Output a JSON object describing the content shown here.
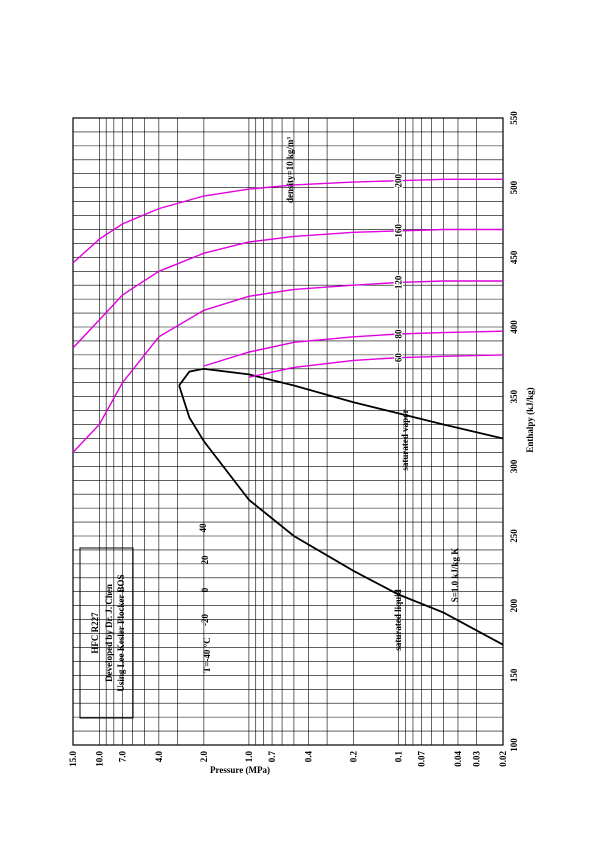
{
  "chart_data": {
    "type": "line",
    "title": "HFC   R227",
    "annotations": [
      "Developed by Dr. J. Chen",
      "Using Lee Kesler Plocker BOS",
      "saturated vapor",
      "saturated liquid",
      "T=-40 °C",
      "-20",
      "0",
      "20",
      "40",
      "S=1.0 kJ/kg K",
      "density=10 kg/m³"
    ],
    "x_label": "Enthalpy (kJ/kg)",
    "y_label": "Pressure (MPa)",
    "xlim": [
      100,
      550
    ],
    "xticks": [
      100,
      150,
      200,
      250,
      300,
      350,
      400,
      450,
      500,
      550
    ],
    "x_minor_ticks": [
      110,
      120,
      130,
      140,
      160,
      170,
      180,
      190,
      210,
      220,
      230,
      240,
      260,
      270,
      280,
      290,
      310,
      320,
      330,
      340,
      360,
      370,
      380,
      390,
      410,
      420,
      430,
      440,
      460,
      470,
      480,
      490,
      510,
      520,
      530,
      540
    ],
    "yscale": "log",
    "ylim": [
      0.02,
      15
    ],
    "yticks": [
      {
        "value": 15,
        "label": "15.0"
      },
      {
        "value": 10,
        "label": "10.0"
      },
      {
        "value": 7,
        "label": "7.0"
      },
      {
        "value": 4,
        "label": "4.0"
      },
      {
        "value": 2,
        "label": "2.0"
      },
      {
        "value": 1,
        "label": "1.0"
      },
      0.7,
      0.4,
      0.2,
      0.1,
      0.07,
      0.04,
      0.03,
      0.02
    ],
    "y_minor_ticks": [
      0.05,
      0.06,
      0.08,
      0.09,
      0.3,
      0.5,
      0.6,
      0.8,
      0.9,
      3,
      5,
      6,
      8,
      9
    ],
    "grid": true,
    "series": [
      {
        "name": "saturated liquid line",
        "color": "#000000",
        "x": [
          172,
          195,
          208,
          225,
          250,
          276,
          318,
          335,
          358
        ],
        "values": [
          0.02,
          0.05,
          0.1,
          0.2,
          0.5,
          1,
          2,
          2.5,
          2.93
        ]
      },
      {
        "name": "saturated vapor line",
        "color": "#000000",
        "x": [
          320,
          330,
          338,
          346,
          358,
          366,
          370,
          368,
          358
        ],
        "values": [
          0.02,
          0.05,
          0.1,
          0.2,
          0.5,
          1,
          2,
          2.5,
          2.93
        ]
      },
      {
        "name": "200",
        "color": "#e000e0",
        "x": [
          506,
          506,
          505,
          504,
          502,
          499,
          494,
          485,
          474,
          463,
          446
        ],
        "values": [
          0.02,
          0.05,
          0.1,
          0.2,
          0.5,
          1,
          2,
          4,
          7,
          10,
          15
        ]
      },
      {
        "name": "160",
        "color": "#e000e0",
        "x": [
          470,
          470,
          469,
          468,
          465,
          461,
          453,
          440,
          423,
          405,
          385
        ],
        "values": [
          0.02,
          0.05,
          0.1,
          0.2,
          0.5,
          1,
          2,
          4,
          7,
          10,
          15
        ]
      },
      {
        "name": "120",
        "color": "#e000e0",
        "x": [
          433,
          433,
          432,
          430,
          427,
          422,
          412,
          393,
          360,
          330,
          310
        ],
        "values": [
          0.02,
          0.05,
          0.1,
          0.2,
          0.5,
          1,
          2,
          4,
          7,
          10,
          15
        ]
      },
      {
        "name": "80",
        "color": "#e000e0",
        "x": [
          397,
          396,
          395,
          393,
          389,
          382,
          372
        ],
        "values": [
          0.02,
          0.05,
          0.1,
          0.2,
          0.5,
          1,
          2
        ]
      },
      {
        "name": "60",
        "color": "#e000e0",
        "x": [
          380,
          379,
          378,
          376,
          371,
          364
        ],
        "values": [
          0.02,
          0.05,
          0.1,
          0.2,
          0.5,
          1
        ]
      }
    ]
  }
}
